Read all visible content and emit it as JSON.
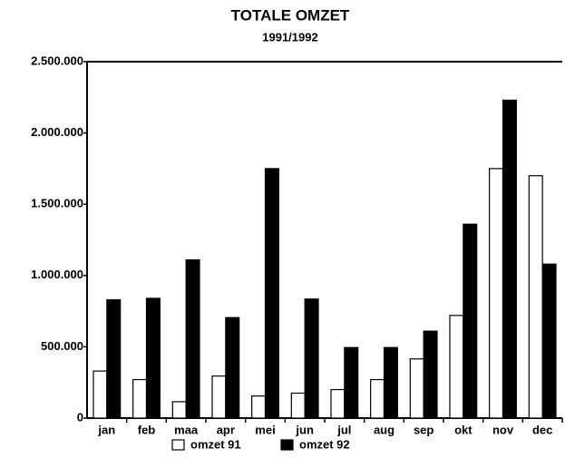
{
  "chart_data": {
    "type": "bar",
    "title": "TOTALE OMZET",
    "subtitle": "1991/1992",
    "categories": [
      "jan",
      "feb",
      "maa",
      "apr",
      "mei",
      "jun",
      "jul",
      "aug",
      "sep",
      "okt",
      "nov",
      "dec"
    ],
    "series": [
      {
        "name": "omzet 91",
        "color": "#ffffff",
        "values": [
          330000,
          270000,
          115000,
          295000,
          155000,
          175000,
          200000,
          270000,
          415000,
          720000,
          1750000,
          1700000
        ]
      },
      {
        "name": "omzet 92",
        "color": "#000000",
        "values": [
          830000,
          840000,
          1110000,
          705000,
          1750000,
          835000,
          495000,
          495000,
          610000,
          1360000,
          2230000,
          1080000
        ]
      }
    ],
    "ylim": [
      0,
      2500000
    ],
    "yticks": [
      0,
      {
        "value": 500000,
        "label": "500.000"
      },
      {
        "value": 1000000,
        "label": "1.000.000"
      },
      {
        "value": 1500000,
        "label": "1.500.000"
      },
      {
        "value": 2000000,
        "label": "2.000.000"
      },
      {
        "value": 2500000,
        "label": "2.500.000"
      }
    ],
    "grid": false
  }
}
